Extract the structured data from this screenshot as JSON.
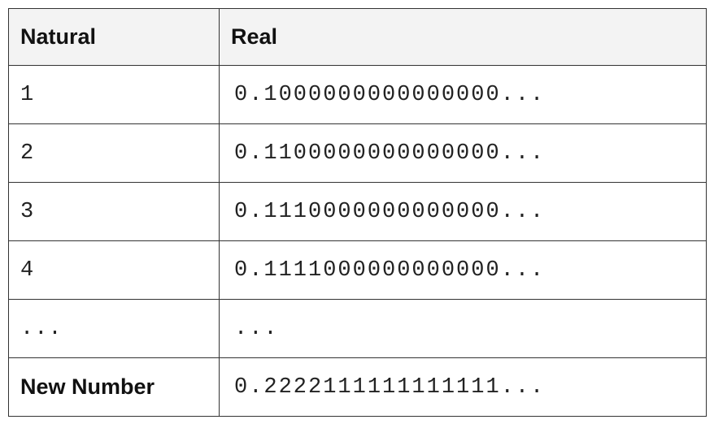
{
  "table": {
    "headers": [
      "Natural",
      "Real"
    ],
    "rows": [
      {
        "natural": "1",
        "real": "0.1000000000000000..."
      },
      {
        "natural": "2",
        "real": "0.1100000000000000..."
      },
      {
        "natural": "3",
        "real": "0.1110000000000000..."
      },
      {
        "natural": "4",
        "real": "0.1111000000000000..."
      },
      {
        "natural": "...",
        "real": "..."
      }
    ],
    "footer": {
      "label": "New Number",
      "real": "0.2222111111111111..."
    }
  },
  "colors": {
    "header_background": "#f3f3f3",
    "border": "#333333",
    "text": "#222222"
  }
}
